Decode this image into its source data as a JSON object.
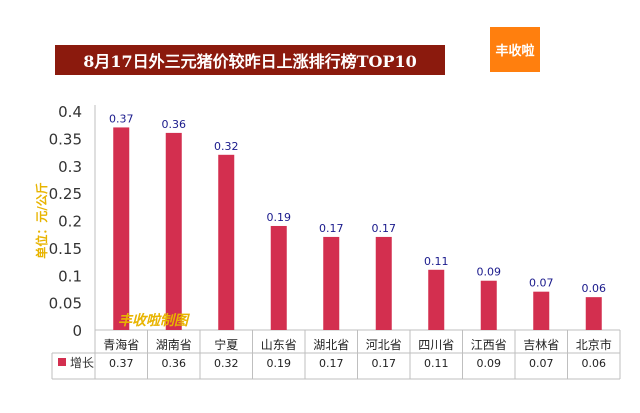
{
  "header": {
    "title": "8月17日外三元猪价较昨日上涨排行榜TOP10",
    "logo_text": "丰收啦"
  },
  "watermark": "丰收啦制图",
  "colors": {
    "bar": "#d32f4f",
    "title_band": "#8b1a0d",
    "logo_bg": "#ff7f0e",
    "ylabel": "#e8b400",
    "watermark": "#e8b400",
    "axis": "#bfbfbf"
  },
  "chart_data": {
    "type": "bar",
    "title": "8月17日外三元猪价较昨日上涨排行榜TOP10",
    "ylabel": "单位：元/公斤",
    "xlabel": "",
    "ylim": [
      0,
      0.4
    ],
    "yticks": [
      0,
      0.05,
      0.1,
      0.15,
      0.2,
      0.25,
      0.3,
      0.35,
      0.4
    ],
    "ytick_labels": [
      "0",
      "0.05",
      "0.1",
      "0.15",
      "0.2",
      "0.25",
      "0.3",
      "0.35",
      "0.4"
    ],
    "categories": [
      "青海省",
      "湖南省",
      "宁夏",
      "山东省",
      "湖北省",
      "河北省",
      "四川省",
      "江西省",
      "吉林省",
      "北京市"
    ],
    "series": [
      {
        "name": "增长",
        "values": [
          0.37,
          0.36,
          0.32,
          0.19,
          0.17,
          0.17,
          0.11,
          0.09,
          0.07,
          0.06
        ],
        "labels": [
          "0.37",
          "0.36",
          "0.32",
          "0.19",
          "0.17",
          "0.17",
          "0.11",
          "0.09",
          "0.07",
          "0.06"
        ]
      }
    ],
    "legend": "data-table-left",
    "grid": false
  }
}
